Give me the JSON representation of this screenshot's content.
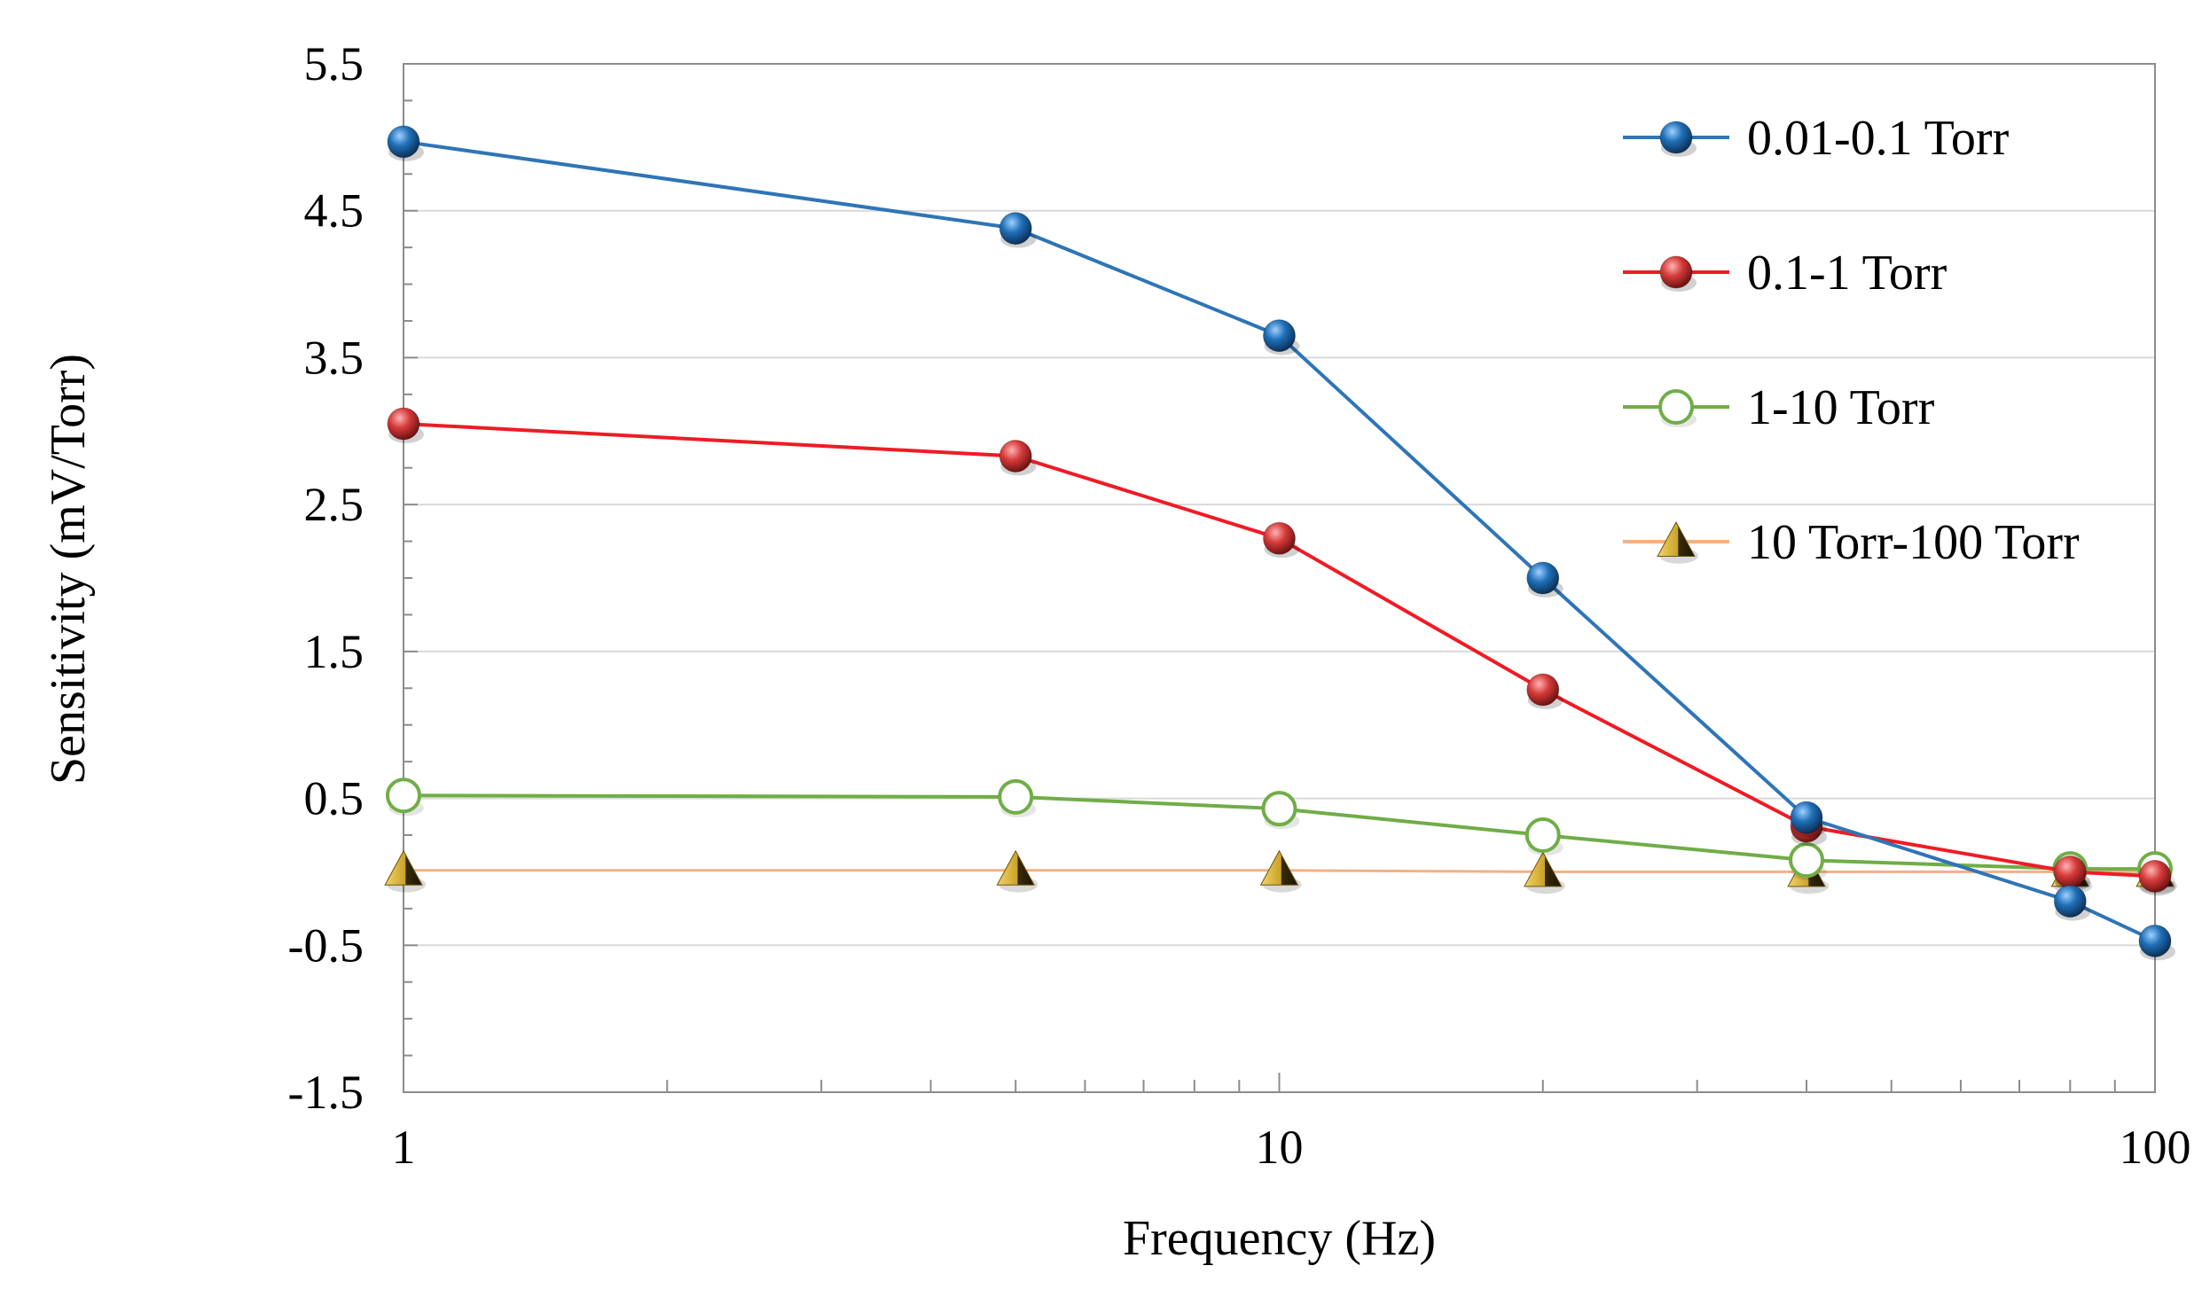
{
  "chart_data": {
    "type": "line",
    "xscale": "log",
    "x": [
      1,
      5,
      10,
      20,
      40,
      80,
      100
    ],
    "xlim": [
      1,
      100
    ],
    "ylim": [
      -1.5,
      5.5
    ],
    "xlabel": "Frequency (Hz)",
    "ylabel": "Sensitivity (mV/Torr)",
    "grid": "horizontal",
    "legend_position": "top-right",
    "x_tick_labels": [
      "1",
      "10",
      "100"
    ],
    "x_ticks": [
      1,
      10,
      100
    ],
    "y_tick_labels": [
      "5.5",
      "4.5",
      "3.5",
      "2.5",
      "1.5",
      "0.5",
      "-0.5",
      "-1.5"
    ],
    "y_ticks": [
      5.5,
      4.5,
      3.5,
      2.5,
      1.5,
      0.5,
      -0.5,
      -1.5
    ],
    "series": [
      {
        "name": "0.01-0.1 Torr",
        "marker": "filled-circle",
        "color": "#2E75B6",
        "marker_color": "#1F5F9F",
        "values": [
          4.97,
          4.38,
          3.65,
          2.0,
          0.37,
          -0.2,
          -0.47
        ]
      },
      {
        "name": "0.1-1 Torr",
        "marker": "filled-circle",
        "color": "#EE1C25",
        "marker_color": "#D03A3A",
        "values": [
          3.05,
          2.83,
          2.27,
          1.24,
          0.31,
          0.0,
          -0.03
        ]
      },
      {
        "name": "1-10 Torr",
        "marker": "open-circle",
        "color": "#70AD47",
        "marker_color": "#70AD47",
        "values": [
          0.52,
          0.51,
          0.43,
          0.25,
          0.08,
          0.02,
          0.02
        ]
      },
      {
        "name": "10 Torr-100 Torr",
        "marker": "triangle",
        "color": "#F4B183",
        "marker_color": "#C9A227",
        "values": [
          0.01,
          0.01,
          0.01,
          0.0,
          0.0,
          0.0,
          0.0
        ]
      }
    ]
  }
}
